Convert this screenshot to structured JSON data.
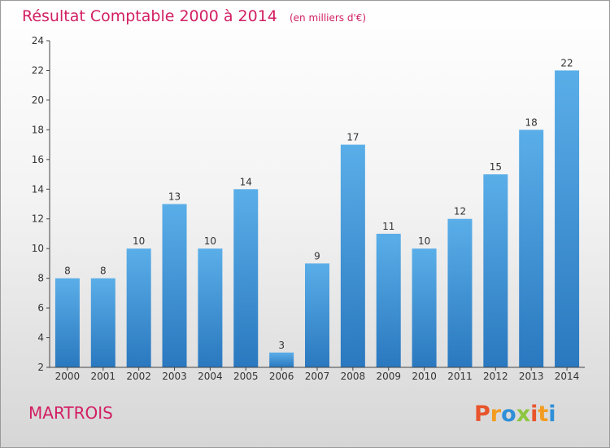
{
  "chart_data": {
    "type": "bar",
    "title": "Résultat Comptable 2000 à 2014",
    "subtitle": "(en milliers d'€)",
    "categories": [
      "2000",
      "2001",
      "2002",
      "2003",
      "2004",
      "2005",
      "2006",
      "2007",
      "2008",
      "2009",
      "2010",
      "2011",
      "2012",
      "2013",
      "2014"
    ],
    "values": [
      8,
      8,
      10,
      13,
      10,
      14,
      3,
      9,
      17,
      11,
      10,
      12,
      15,
      18,
      22
    ],
    "ylim": [
      2,
      24
    ],
    "yticks": [
      2,
      4,
      6,
      8,
      10,
      12,
      14,
      16,
      18,
      20,
      22,
      24
    ],
    "xlabel": "",
    "ylabel": "",
    "grid": false,
    "bar_color": "#3d8fd8"
  },
  "footer": {
    "town": "MARTROIS",
    "brand": "Proxiti"
  },
  "colors": {
    "title": "#d21f63",
    "town": "#d21f63",
    "logo": [
      "#e8542b",
      "#f39c1f",
      "#2f8fd8",
      "#8dc63f",
      "#e8542b",
      "#f39c1f",
      "#2f8fd8"
    ]
  }
}
